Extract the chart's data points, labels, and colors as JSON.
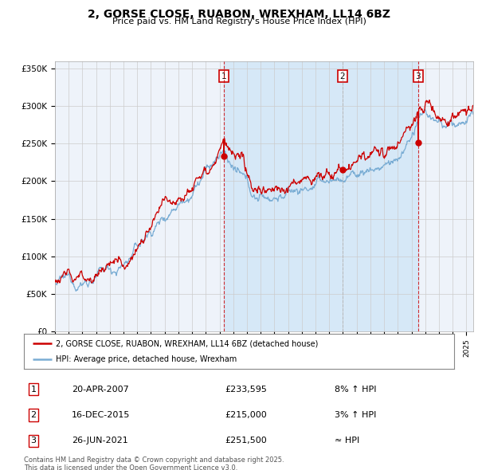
{
  "title_line1": "2, GORSE CLOSE, RUABON, WREXHAM, LL14 6BZ",
  "title_line2": "Price paid vs. HM Land Registry's House Price Index (HPI)",
  "hpi_color": "#7aadd4",
  "price_color": "#cc0000",
  "shade_color": "#d6e8f7",
  "background_color": "#ffffff",
  "plot_bg": "#eef3fa",
  "ylim": [
    0,
    360000
  ],
  "yticks": [
    0,
    50000,
    100000,
    150000,
    200000,
    250000,
    300000,
    350000
  ],
  "ytick_labels": [
    "£0",
    "£50K",
    "£100K",
    "£150K",
    "£200K",
    "£250K",
    "£300K",
    "£350K"
  ],
  "xlim_start": 1995.0,
  "xlim_end": 2025.5,
  "transactions": [
    {
      "num": 1,
      "year": 2007.3,
      "price": 233595,
      "label": "1"
    },
    {
      "num": 2,
      "year": 2015.96,
      "price": 215000,
      "label": "2"
    },
    {
      "num": 3,
      "year": 2021.48,
      "price": 251500,
      "label": "3"
    }
  ],
  "legend_line1": "2, GORSE CLOSE, RUABON, WREXHAM, LL14 6BZ (detached house)",
  "legend_line2": "HPI: Average price, detached house, Wrexham",
  "footer": "Contains HM Land Registry data © Crown copyright and database right 2025.\nThis data is licensed under the Open Government Licence v3.0.",
  "table_rows": [
    [
      "1",
      "20-APR-2007",
      "£233,595",
      "8% ↑ HPI"
    ],
    [
      "2",
      "16-DEC-2015",
      "£215,000",
      "3% ↑ HPI"
    ],
    [
      "3",
      "26-JUN-2021",
      "£251,500",
      "≈ HPI"
    ]
  ]
}
